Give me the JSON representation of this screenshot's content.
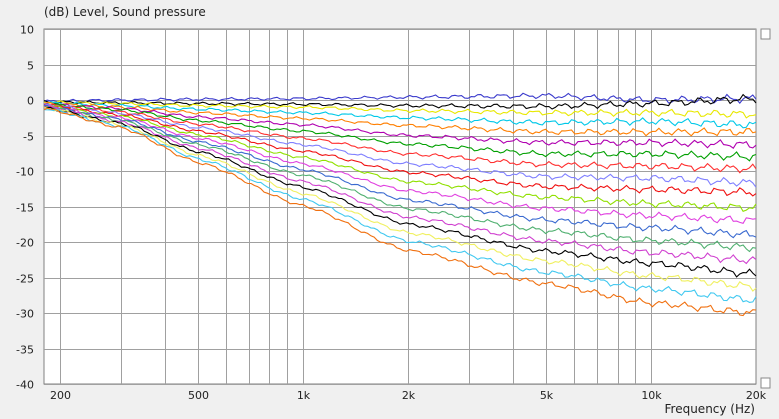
{
  "chart_data": {
    "type": "line",
    "title": "(dB)  Level, Sound pressure",
    "xlabel": "Frequency  (Hz)",
    "ylabel": "(dB)",
    "x_scale": "log",
    "xlim": [
      180,
      20000
    ],
    "ylim": [
      -40,
      10
    ],
    "grid": true,
    "y_ticks": [
      "10",
      "5",
      "0",
      "-5",
      "-10",
      "-15",
      "-20",
      "-25",
      "-30",
      "-35",
      "-40"
    ],
    "x_ticks": [
      {
        "value": 200,
        "label": "200"
      },
      {
        "value": 500,
        "label": "500"
      },
      {
        "value": 1000,
        "label": "1k"
      },
      {
        "value": 2000,
        "label": "2k"
      },
      {
        "value": 5000,
        "label": "5k"
      },
      {
        "value": 10000,
        "label": "10k"
      },
      {
        "value": 20000,
        "label": "20k"
      }
    ],
    "x_minor_grid": [
      300,
      400,
      600,
      700,
      800,
      900,
      3000,
      4000,
      6000,
      7000,
      8000,
      9000
    ],
    "frequencies": [
      180,
      300,
      500,
      1000,
      2000,
      5000,
      10000,
      20000
    ],
    "series": [
      {
        "color": "#3a3acc",
        "values": [
          -0.2,
          0.0,
          0.1,
          0.2,
          0.4,
          0.6,
          0.0,
          0.2
        ]
      },
      {
        "color": "#000000",
        "values": [
          -0.3,
          -0.4,
          -0.5,
          -0.6,
          -0.8,
          -0.9,
          -0.5,
          0.2
        ]
      },
      {
        "color": "#e8e800",
        "values": [
          -0.3,
          -0.5,
          -0.8,
          -1.0,
          -1.5,
          -1.8,
          -1.8,
          -2.0
        ]
      },
      {
        "color": "#00c8e8",
        "values": [
          -0.4,
          -0.8,
          -1.3,
          -1.8,
          -2.5,
          -3.2,
          -3.0,
          -3.5
        ]
      },
      {
        "color": "#ff7f00",
        "values": [
          -0.5,
          -1.0,
          -1.8,
          -2.6,
          -3.6,
          -4.5,
          -4.5,
          -4.5
        ]
      },
      {
        "color": "#b000b0",
        "values": [
          -0.6,
          -1.2,
          -2.4,
          -3.5,
          -5.0,
          -6.0,
          -6.0,
          -6.3
        ]
      },
      {
        "color": "#00a000",
        "values": [
          -0.6,
          -1.4,
          -2.9,
          -4.4,
          -6.2,
          -7.6,
          -7.6,
          -8.0
        ]
      },
      {
        "color": "#ff3030",
        "values": [
          -0.7,
          -1.7,
          -3.4,
          -5.4,
          -7.6,
          -9.1,
          -9.3,
          -9.7
        ]
      },
      {
        "color": "#8080ff",
        "values": [
          -0.7,
          -1.9,
          -3.9,
          -6.3,
          -9.0,
          -10.8,
          -11.0,
          -11.7
        ]
      },
      {
        "color": "#f01010",
        "values": [
          -0.8,
          -2.1,
          -4.4,
          -7.2,
          -10.2,
          -12.2,
          -12.6,
          -13.0
        ]
      },
      {
        "color": "#90e000",
        "values": [
          -0.8,
          -2.3,
          -4.9,
          -8.1,
          -11.5,
          -13.7,
          -14.6,
          -15.2
        ]
      },
      {
        "color": "#e040e0",
        "values": [
          -0.9,
          -2.5,
          -5.4,
          -9.0,
          -12.8,
          -15.3,
          -16.3,
          -17.0
        ]
      },
      {
        "color": "#3a6ad0",
        "values": [
          -0.9,
          -2.7,
          -5.9,
          -9.8,
          -14.1,
          -16.9,
          -18.0,
          -19.0
        ]
      },
      {
        "color": "#50b070",
        "values": [
          -1.0,
          -2.9,
          -6.3,
          -10.6,
          -15.3,
          -18.4,
          -19.8,
          -20.8
        ]
      },
      {
        "color": "#d040d0",
        "values": [
          -1.0,
          -3.1,
          -6.8,
          -11.5,
          -16.5,
          -19.9,
          -21.5,
          -22.6
        ]
      },
      {
        "color": "#000000",
        "values": [
          -1.1,
          -3.3,
          -7.3,
          -12.3,
          -17.5,
          -21.3,
          -23.0,
          -24.5
        ]
      },
      {
        "color": "#f0f060",
        "values": [
          -1.1,
          -3.5,
          -7.8,
          -13.2,
          -18.7,
          -22.7,
          -24.8,
          -26.3
        ]
      },
      {
        "color": "#40c8f0",
        "values": [
          -1.2,
          -3.7,
          -8.3,
          -14.0,
          -19.9,
          -24.3,
          -26.6,
          -28.2
        ]
      },
      {
        "color": "#f07010",
        "values": [
          -1.2,
          -3.9,
          -8.8,
          -14.9,
          -21.2,
          -25.9,
          -28.6,
          -30.0
        ]
      }
    ]
  }
}
